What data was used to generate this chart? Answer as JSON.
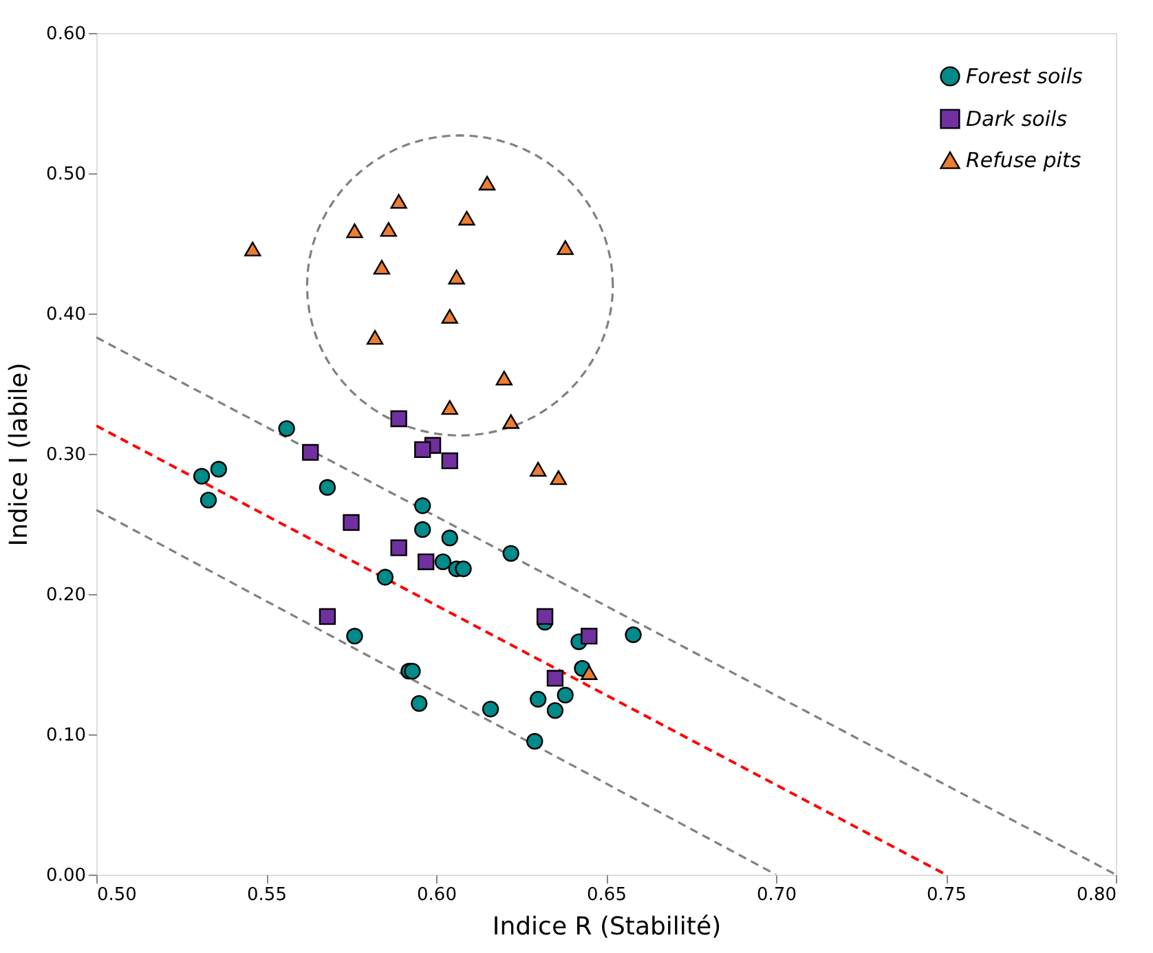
{
  "chart_data": {
    "type": "scatter",
    "xlabel": "Indice R (Stabilité)",
    "ylabel": "Indice I (labile)",
    "xlim": [
      0.5,
      0.8
    ],
    "ylim": [
      0.0,
      0.6
    ],
    "xticks": [
      {
        "value": 0.5,
        "label": "0.50"
      },
      {
        "value": 0.55,
        "label": "0.55"
      },
      {
        "value": 0.6,
        "label": "0.60"
      },
      {
        "value": 0.65,
        "label": "0.65"
      },
      {
        "value": 0.7,
        "label": "0.70"
      },
      {
        "value": 0.75,
        "label": "0.75"
      },
      {
        "value": 0.8,
        "label": "0.80"
      }
    ],
    "yticks": [
      {
        "value": 0.0,
        "label": "0.00"
      },
      {
        "value": 0.1,
        "label": "0.10"
      },
      {
        "value": 0.2,
        "label": "0.20"
      },
      {
        "value": 0.3,
        "label": "0.30"
      },
      {
        "value": 0.4,
        "label": "0.40"
      },
      {
        "value": 0.5,
        "label": "0.50"
      },
      {
        "value": 0.6,
        "label": "0.60"
      }
    ],
    "grid": false,
    "legend": "top right",
    "series": [
      {
        "name": "Forest soils",
        "type": "scatter",
        "marker": "circle",
        "color": "#008b8b",
        "x": [
          0.556,
          0.531,
          0.536,
          0.533,
          0.568,
          0.596,
          0.596,
          0.604,
          0.602,
          0.606,
          0.608,
          0.622,
          0.585,
          0.632,
          0.658,
          0.642,
          0.576,
          0.592,
          0.593,
          0.643,
          0.638,
          0.63,
          0.635,
          0.595,
          0.616,
          0.629
        ],
        "values": [
          0.318,
          0.284,
          0.289,
          0.267,
          0.276,
          0.263,
          0.246,
          0.24,
          0.223,
          0.218,
          0.218,
          0.229,
          0.212,
          0.18,
          0.171,
          0.166,
          0.17,
          0.145,
          0.145,
          0.147,
          0.128,
          0.125,
          0.117,
          0.122,
          0.118,
          0.095
        ]
      },
      {
        "name": "Dark soils",
        "type": "scatter",
        "marker": "square",
        "color": "#7030a0",
        "x": [
          0.589,
          0.563,
          0.599,
          0.596,
          0.604,
          0.575,
          0.589,
          0.597,
          0.568,
          0.632,
          0.645,
          0.635
        ],
        "values": [
          0.325,
          0.301,
          0.306,
          0.303,
          0.295,
          0.251,
          0.233,
          0.223,
          0.184,
          0.184,
          0.17,
          0.14
        ]
      },
      {
        "name": "Refuse pits",
        "type": "scatter",
        "marker": "triangle",
        "color": "#ed7d31",
        "x": [
          0.546,
          0.576,
          0.586,
          0.589,
          0.615,
          0.609,
          0.638,
          0.584,
          0.606,
          0.604,
          0.582,
          0.62,
          0.604,
          0.622,
          0.63,
          0.636,
          0.645
        ],
        "values": [
          0.446,
          0.459,
          0.46,
          0.48,
          0.493,
          0.468,
          0.447,
          0.433,
          0.426,
          0.398,
          0.383,
          0.354,
          0.333,
          0.323,
          0.289,
          0.283,
          0.144
        ]
      },
      {
        "type": "line",
        "line_style": "dashed",
        "color": "#ff0000",
        "x": [
          0.5,
          0.75
        ],
        "values": [
          0.32,
          0.0
        ]
      },
      {
        "type": "line",
        "line_style": "dashed",
        "color": "#808080",
        "x": [
          0.5,
          0.8
        ],
        "values": [
          0.383,
          0.0
        ]
      },
      {
        "type": "line",
        "line_style": "dashed",
        "color": "#808080",
        "x": [
          0.5,
          0.7
        ],
        "values": [
          0.26,
          0.0
        ]
      }
    ]
  }
}
